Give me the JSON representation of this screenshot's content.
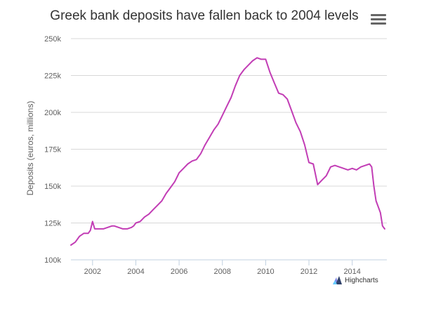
{
  "chart_data": {
    "type": "line",
    "title": "Greek bank deposits have fallen back to 2004 levels",
    "ylabel": "Deposits (euros, millions)",
    "xlabel": "",
    "xlim": [
      2001.0,
      2015.6
    ],
    "ylim": [
      100000,
      250000
    ],
    "x_ticks": [
      2002,
      2004,
      2006,
      2008,
      2010,
      2012,
      2014
    ],
    "y_ticks": [
      100000,
      125000,
      150000,
      175000,
      200000,
      225000,
      250000
    ],
    "y_tick_labels": [
      "100k",
      "125k",
      "150k",
      "175k",
      "200k",
      "225k",
      "250k"
    ],
    "grid": true,
    "legend": "none",
    "series": [
      {
        "color": "#c23db5",
        "x": [
          2001.0,
          2001.2,
          2001.4,
          2001.6,
          2001.8,
          2001.9,
          2002.0,
          2002.1,
          2002.3,
          2002.5,
          2002.7,
          2002.9,
          2003.0,
          2003.2,
          2003.4,
          2003.6,
          2003.8,
          2003.9,
          2004.0,
          2004.2,
          2004.4,
          2004.6,
          2004.8,
          2005.0,
          2005.2,
          2005.4,
          2005.6,
          2005.8,
          2006.0,
          2006.2,
          2006.4,
          2006.6,
          2006.8,
          2007.0,
          2007.2,
          2007.4,
          2007.6,
          2007.8,
          2008.0,
          2008.2,
          2008.4,
          2008.6,
          2008.8,
          2009.0,
          2009.2,
          2009.4,
          2009.6,
          2009.8,
          2010.0,
          2010.2,
          2010.4,
          2010.6,
          2010.8,
          2011.0,
          2011.2,
          2011.4,
          2011.6,
          2011.8,
          2012.0,
          2012.2,
          2012.4,
          2012.6,
          2012.8,
          2013.0,
          2013.2,
          2013.4,
          2013.6,
          2013.8,
          2014.0,
          2014.2,
          2014.4,
          2014.6,
          2014.8,
          2014.9,
          2015.0,
          2015.1,
          2015.2,
          2015.3,
          2015.4,
          2015.5
        ],
        "values": [
          110000,
          112000,
          116000,
          118000,
          118000,
          120000,
          126000,
          121000,
          121000,
          121000,
          122000,
          123000,
          123000,
          122000,
          121000,
          121000,
          122000,
          123000,
          125000,
          126000,
          129000,
          131000,
          134000,
          137000,
          140000,
          145000,
          149000,
          153000,
          159000,
          162000,
          165000,
          167000,
          168000,
          172000,
          178000,
          183000,
          188000,
          192000,
          198000,
          204000,
          210000,
          218000,
          225000,
          229000,
          232000,
          235000,
          237000,
          236000,
          236000,
          227000,
          220000,
          213000,
          212000,
          209000,
          201000,
          193000,
          187000,
          178000,
          166000,
          165000,
          151000,
          154000,
          157000,
          163000,
          164000,
          163000,
          162000,
          161000,
          162000,
          161000,
          163000,
          164000,
          165000,
          163000,
          150000,
          140000,
          136000,
          132000,
          123000,
          121000
        ]
      }
    ]
  },
  "menu_icon": "hamburger-menu-icon",
  "credits": {
    "label": "Highcharts",
    "icon": "highcharts-logo-icon"
  }
}
